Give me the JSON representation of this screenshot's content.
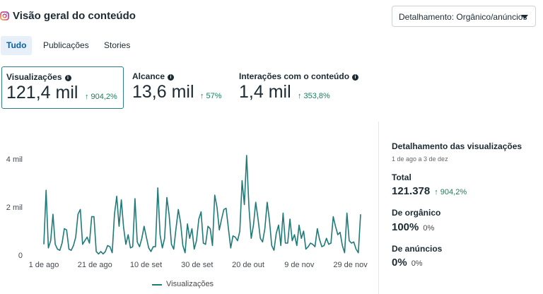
{
  "header": {
    "title": "Visão geral do conteúdo",
    "dropdown_label": "Detalhamento: Orgânico/anúncios"
  },
  "tabs": [
    {
      "label": "Tudo",
      "active": true
    },
    {
      "label": "Publicações",
      "active": false
    },
    {
      "label": "Stories",
      "active": false
    }
  ],
  "metrics": [
    {
      "label": "Visualizações",
      "value": "121,4 mil",
      "change": "904,2%",
      "selected": true
    },
    {
      "label": "Alcance",
      "value": "13,6 mil",
      "change": "57%",
      "selected": false
    },
    {
      "label": "Interações com o conteúdo",
      "value": "1,4 mil",
      "change": "353,8%",
      "selected": false
    }
  ],
  "colors": {
    "series": "#1f7a7a",
    "positive": "#1b7d5c",
    "selected_border": "#2f7a8b"
  },
  "chart_data": {
    "type": "line",
    "series": [
      {
        "name": "Visualizações",
        "values": [
          450,
          2700,
          300,
          600,
          1700,
          450,
          250,
          200,
          500,
          1100,
          1050,
          250,
          200,
          400,
          750,
          1700,
          1900,
          450,
          600,
          750,
          500,
          1600,
          1600,
          150,
          50,
          150,
          50,
          150,
          400,
          350,
          100,
          1700,
          2450,
          1200,
          2300,
          1150,
          450,
          850,
          300,
          350,
          2350,
          550,
          350,
          700,
          1200,
          750,
          300,
          150,
          350,
          350,
          2800,
          850,
          300,
          700,
          2400,
          1650,
          450,
          250,
          1100,
          1900,
          1350,
          400,
          100,
          1300,
          700,
          1100,
          250,
          600,
          1500,
          1800,
          500,
          450,
          1200,
          1100,
          400,
          2500,
          2000,
          1050,
          1500,
          1900,
          1950,
          1100,
          300,
          800,
          750,
          600,
          1000,
          3100,
          2100,
          4150,
          2000,
          700,
          1250,
          2200,
          1500,
          700,
          550,
          1100,
          2200,
          1450,
          400,
          200,
          900,
          1250,
          400,
          1750,
          500,
          500,
          1500,
          600,
          850,
          400,
          1250,
          700,
          1000,
          250,
          350,
          500,
          450,
          350,
          1100,
          650,
          350,
          400,
          700,
          450,
          500,
          1600,
          1200,
          850,
          950,
          400,
          100,
          1750,
          600,
          500,
          550,
          250,
          100,
          1700
        ]
      }
    ],
    "x_ticks": [
      "1 de ago",
      "21 de ago",
      "10 de set",
      "30 de set",
      "20 de out",
      "9 de nov",
      "29 de nov"
    ],
    "y_ticks": [
      "0",
      "2 mil",
      "4 mil"
    ],
    "ylim": [
      0,
      4500
    ],
    "grid": false,
    "legend_position": "bottom"
  },
  "breakdown": {
    "title": "Detalhamento das visualizações",
    "date_range": "1 de ago a 3 de dez",
    "total_label": "Total",
    "total_value": "121.378",
    "total_change": "904,2%",
    "organic_label": "De orgânico",
    "organic_value": "100%",
    "organic_sub": "0%",
    "ads_label": "De anúncios",
    "ads_value": "0%",
    "ads_sub": "0%"
  }
}
